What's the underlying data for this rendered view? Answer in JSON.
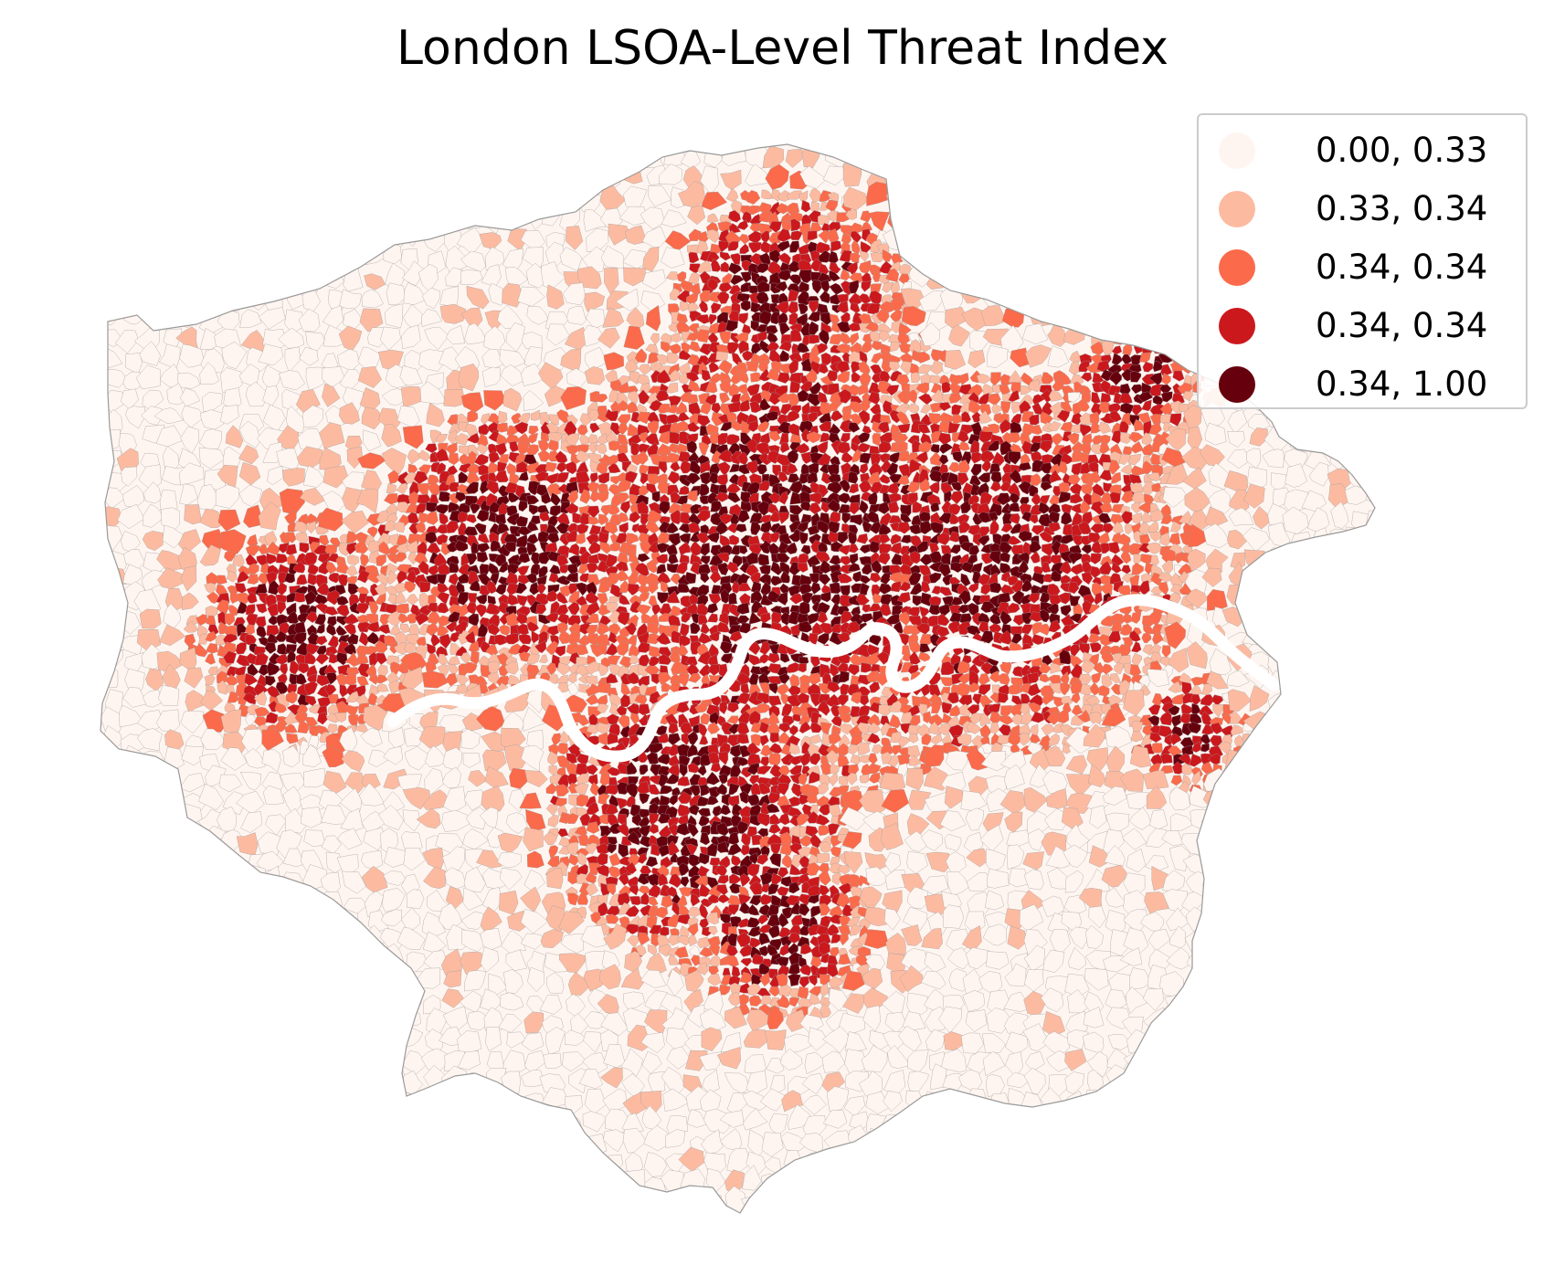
{
  "map": {
    "title": "London LSOA-Level Threat Index",
    "colormap": "Reds",
    "legend_placement": "top-right",
    "boundary_color": "#9a9a9a",
    "river_color": "#ffffff",
    "river_name_shown": false
  },
  "legend": {
    "items": [
      {
        "label": "0.00, 0.33",
        "color": "#fff5f0"
      },
      {
        "label": "0.33, 0.34",
        "color": "#fcbba1"
      },
      {
        "label": "0.34, 0.34",
        "color": "#fb6a4a"
      },
      {
        "label": "0.34, 0.34",
        "color": "#cb181d"
      },
      {
        "label": "0.34, 1.00",
        "color": "#67000d"
      }
    ]
  }
}
